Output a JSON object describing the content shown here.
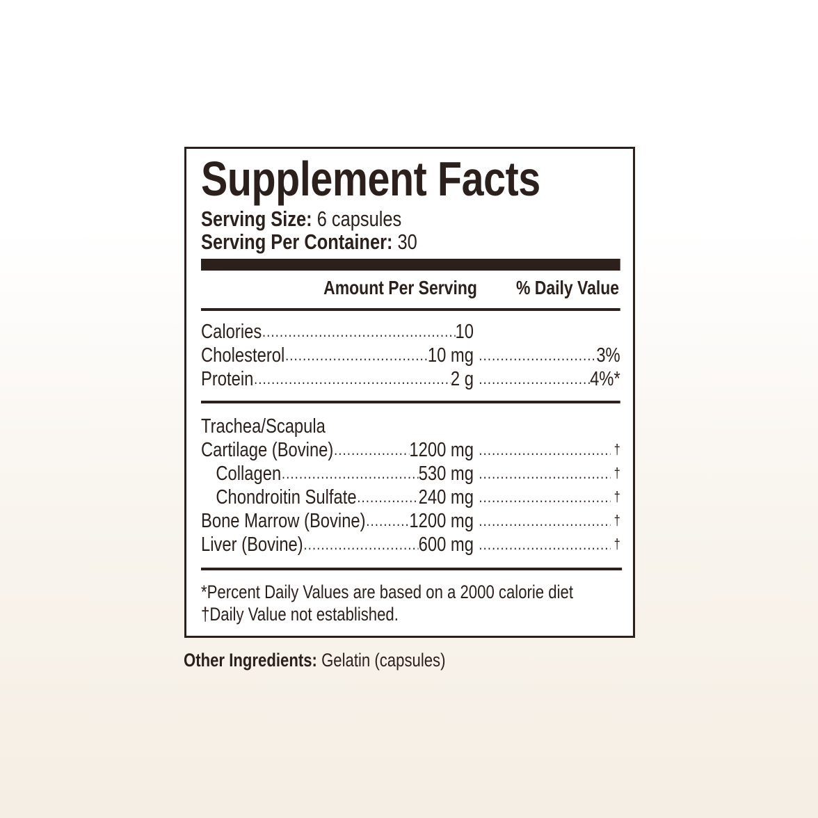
{
  "label": {
    "title": "Supplement Facts",
    "serving_size_label": "Serving Size:",
    "serving_size_value": "6 capsules",
    "servings_per_container_label": "Serving Per Container:",
    "servings_per_container_value": "30",
    "header_amount": "Amount Per Serving",
    "header_daily_value": "% Daily Value",
    "nutrients": [
      {
        "name": "Calories",
        "amount": "10",
        "dv": ""
      },
      {
        "name": "Cholesterol",
        "amount": "10 mg",
        "dv": "3%"
      },
      {
        "name": "Protein",
        "amount": "2 g",
        "dv": "4%*"
      }
    ],
    "group_heading": "Trachea/Scapula",
    "ingredients": [
      {
        "name": "Cartilage (Bovine)",
        "amount": "1200 mg",
        "dv": "†"
      },
      {
        "name": "Collagen",
        "amount": "530 mg",
        "dv": "†"
      },
      {
        "name": "Chondroitin Sulfate",
        "amount": "240 mg",
        "dv": "†"
      },
      {
        "name": "Bone Marrow (Bovine)",
        "amount": "1200 mg",
        "dv": "†"
      },
      {
        "name": "Liver (Bovine)",
        "amount": "600 mg",
        "dv": "†"
      }
    ],
    "footnote_1": "*Percent Daily Values are based on a 2000 calorie diet",
    "footnote_2": "†Daily Value not established."
  },
  "other_ingredients": {
    "label": "Other Ingredients:",
    "value": "Gelatin (capsules)"
  },
  "colors": {
    "text": "#2b201b",
    "background_bottom": "#f5eee4"
  }
}
